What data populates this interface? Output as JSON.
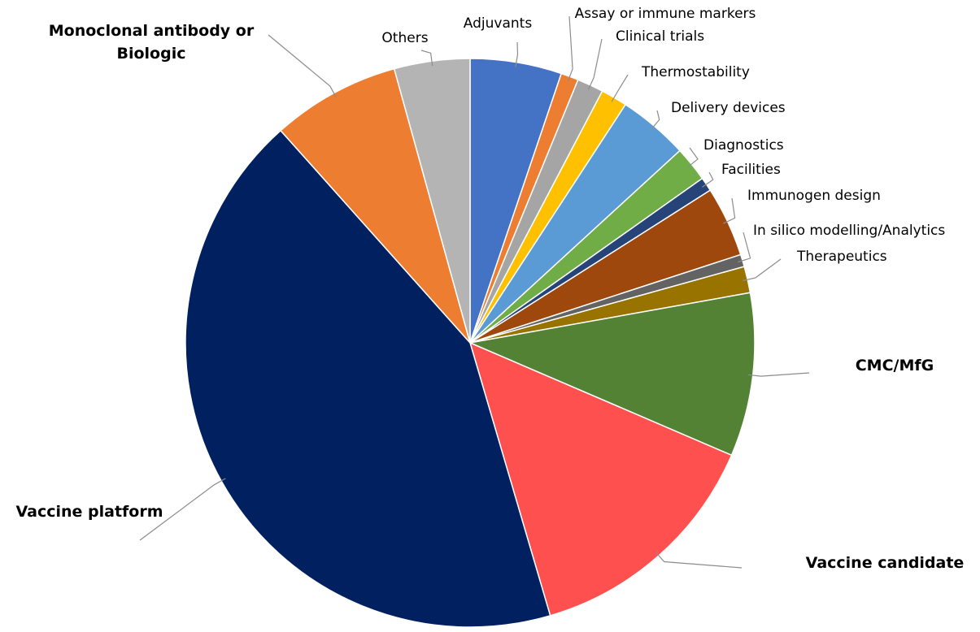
{
  "chart_data": {
    "type": "pie",
    "title": "",
    "start_angle_deg": 0,
    "direction": "clockwise",
    "slices": [
      {
        "label": "Adjuvants",
        "value": 5.2,
        "color": "#4472c4",
        "bold": false
      },
      {
        "label": "Assay or immune markers",
        "value": 1.0,
        "color": "#ed7d31",
        "bold": false
      },
      {
        "label": "Clinical trials",
        "value": 1.5,
        "color": "#a5a5a5",
        "bold": false
      },
      {
        "label": "Thermostability",
        "value": 1.5,
        "color": "#ffc000",
        "bold": false
      },
      {
        "label": "Delivery devices",
        "value": 4.0,
        "color": "#5b9bd5",
        "bold": false
      },
      {
        "label": "Diagnostics",
        "value": 2.0,
        "color": "#70ad47",
        "bold": false
      },
      {
        "label": "Facilities",
        "value": 0.8,
        "color": "#264478",
        "bold": false
      },
      {
        "label": "Immunogen design",
        "value": 4.0,
        "color": "#9e480e",
        "bold": false
      },
      {
        "label": "In silico modelling/Analytics",
        "value": 0.7,
        "color": "#636363",
        "bold": false
      },
      {
        "label": "Therapeutics",
        "value": 1.5,
        "color": "#997300",
        "bold": false
      },
      {
        "label": "CMC/MfG",
        "value": 9.3,
        "color": "#548235",
        "bold": true
      },
      {
        "label": "Vaccine candidate",
        "value": 14.0,
        "color": "#ff5050",
        "bold": true
      },
      {
        "label": "Vaccine platform",
        "value": 43.0,
        "color": "#002060",
        "bold": true
      },
      {
        "label": "Monoclonal antibody or Biologic",
        "value": 7.3,
        "color": "#ed7d31",
        "bold": true
      },
      {
        "label": "Others",
        "value": 4.3,
        "color": "#b4b4b4",
        "bold": false
      }
    ]
  }
}
